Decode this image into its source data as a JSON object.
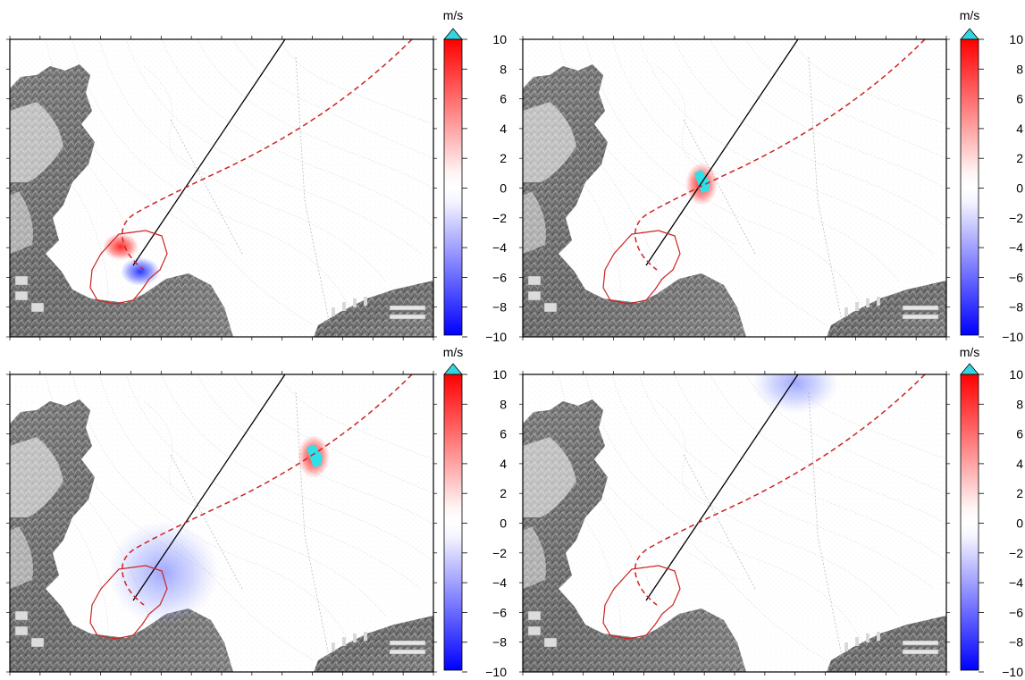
{
  "colorbar": {
    "unit": "m/s",
    "ticks": [
      "10",
      "8",
      "6",
      "4",
      "2",
      "0",
      "−2",
      "−4",
      "−6",
      "−8",
      "−10"
    ],
    "colors": {
      "max": "#ff0000",
      "mid": "#ffffff",
      "min": "#0000ff",
      "overflow": "#33d6e0"
    }
  },
  "colors": {
    "transect_line": "#000000",
    "track_dashed": "#cc2222",
    "outline": "#cc2222",
    "anomaly_positive": "#ff2020",
    "anomaly_negative": "#2a3cff",
    "saturated": "#30e0e8"
  },
  "panels": [
    {
      "name": "panel-top-left",
      "anomalies": [
        "red-blue dipole near outline"
      ]
    },
    {
      "name": "panel-top-right",
      "anomalies": [
        "red ring with cyan core on track"
      ]
    },
    {
      "name": "panel-bottom-left",
      "anomalies": [
        "broad blue anomaly",
        "red ring with cyan core on track"
      ]
    },
    {
      "name": "panel-bottom-right",
      "anomalies": [
        "blue anomaly at top edge"
      ]
    }
  ]
}
